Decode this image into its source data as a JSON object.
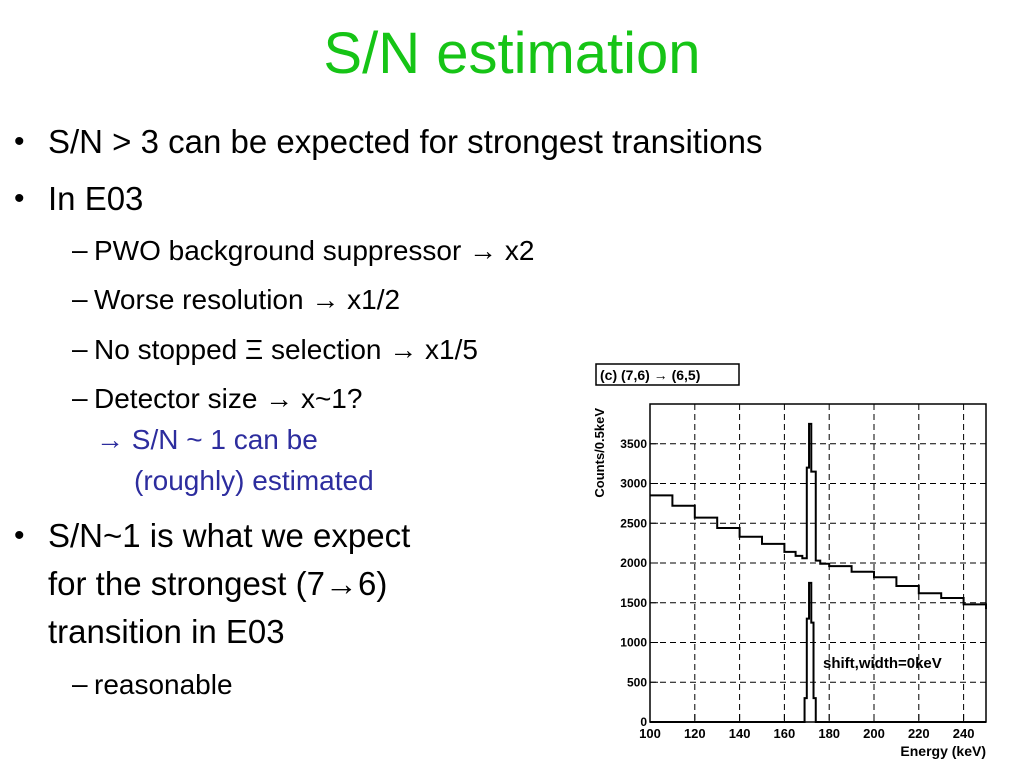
{
  "slide": {
    "title": "S/N estimation",
    "bullets": [
      "S/N > 3 can be expected for strongest transitions",
      "In E03"
    ],
    "sub_items": [
      "PWO background suppressor → x2",
      "Worse resolution → x1/2",
      "No stopped Ξ selection → x1/5",
      "Detector size → x~1?"
    ],
    "conclusion_lines": [
      "→ S/N ~ 1 can be",
      "(roughly) estimated"
    ],
    "bullet3_lines": [
      "S/N~1 is what we expect",
      "for the strongest (7→6)",
      "transition in E03"
    ],
    "bullet3_sub": "reasonable",
    "colors": {
      "title": "#16c416",
      "conclusion": "#2d2d9e"
    }
  },
  "chart_data": {
    "type": "line",
    "panel_label": "(c) (7,6) → (6,5)",
    "xlabel": "Energy (keV)",
    "ylabel": "Counts/0.5keV",
    "xlim": [
      100,
      250
    ],
    "ylim": [
      0,
      4000
    ],
    "x_ticks": [
      100,
      120,
      140,
      160,
      180,
      200,
      220,
      240
    ],
    "y_ticks": [
      0,
      500,
      1000,
      1500,
      2000,
      2500,
      3000,
      3500
    ],
    "annotation": "shift,width=0keV",
    "series": [
      {
        "description": "simulated spectrum with background",
        "x": [
          100,
          110,
          120,
          130,
          140,
          150,
          160,
          165,
          168,
          170,
          171,
          172,
          174,
          176,
          180,
          190,
          200,
          210,
          220,
          230,
          240,
          250
        ],
        "y": [
          2850,
          2720,
          2570,
          2440,
          2330,
          2240,
          2140,
          2090,
          2060,
          3200,
          3750,
          3150,
          2030,
          1990,
          1960,
          1890,
          1820,
          1710,
          1620,
          1560,
          1480,
          1420
        ]
      },
      {
        "description": "signal peak only",
        "x": [
          100,
          150,
          166,
          168,
          169,
          170,
          171,
          172,
          173,
          174,
          176,
          200,
          250
        ],
        "y": [
          0,
          0,
          0,
          0,
          300,
          1300,
          1750,
          1250,
          300,
          0,
          0,
          0,
          0
        ]
      }
    ]
  }
}
